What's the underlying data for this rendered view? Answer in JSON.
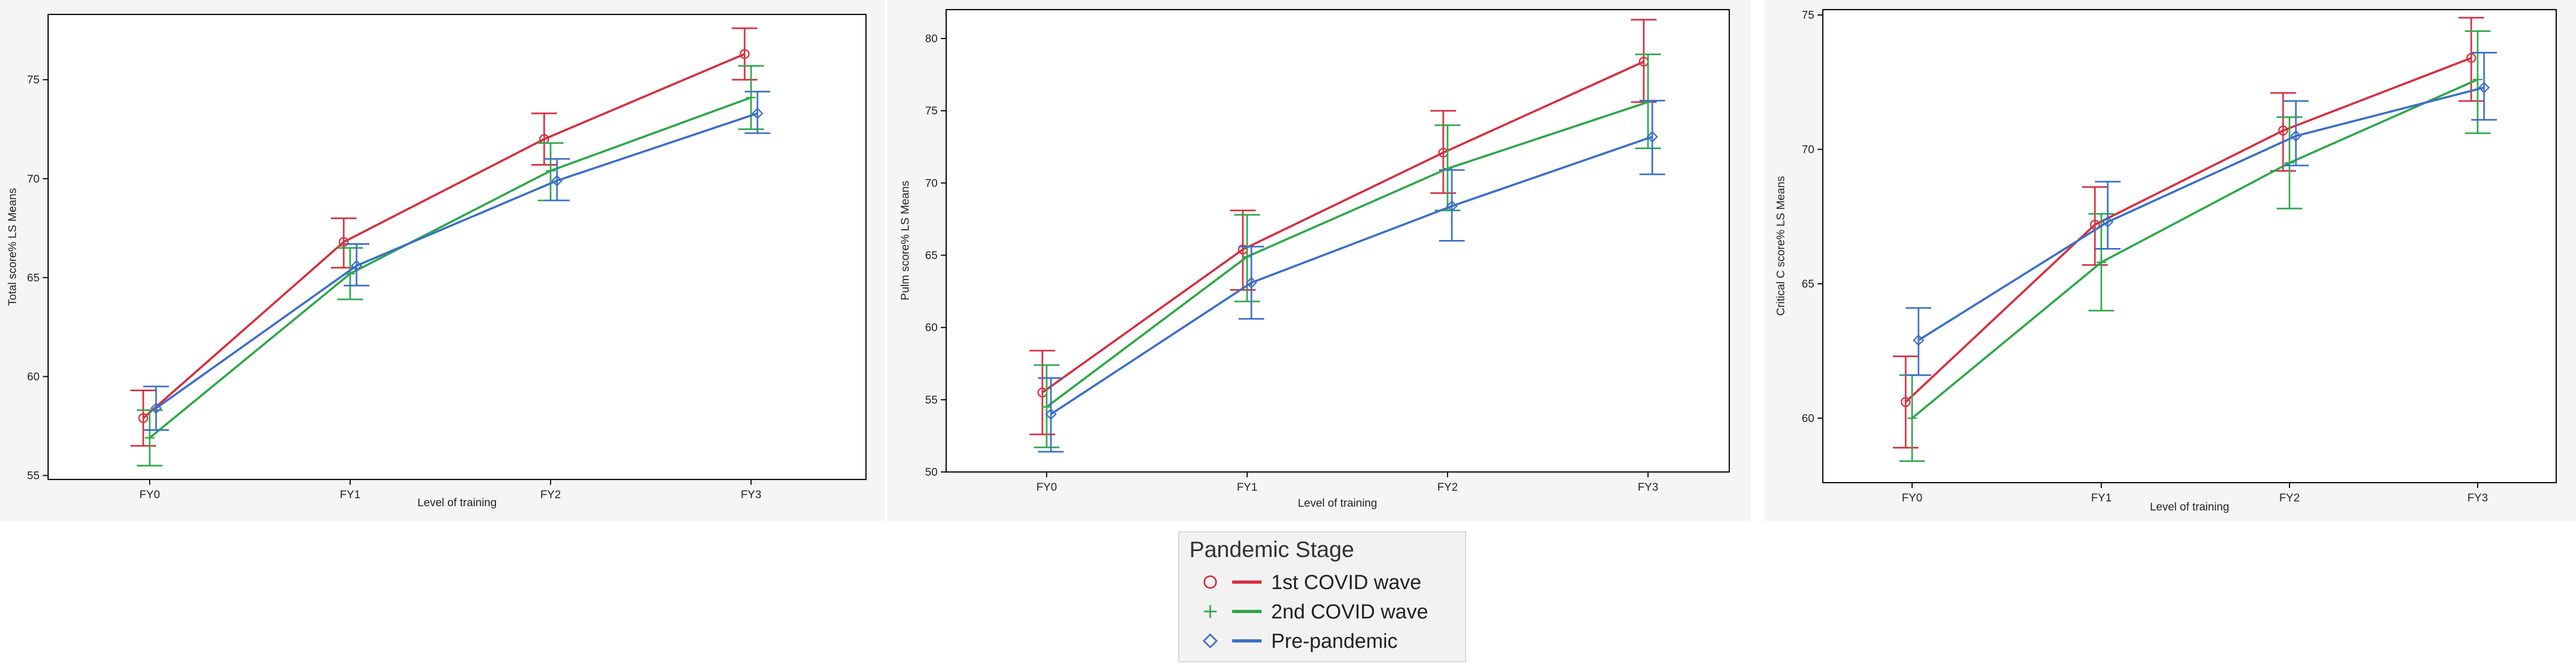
{
  "legend": {
    "title": "Pandemic Stage",
    "items": [
      {
        "label": "1st COVID wave",
        "color": "#d62f3f",
        "marker": "circle"
      },
      {
        "label": "2nd COVID wave",
        "color": "#2ea84a",
        "marker": "plus"
      },
      {
        "label": "Pre-pandemic",
        "color": "#3c6fc8",
        "marker": "diamond"
      }
    ]
  },
  "chart_data": [
    {
      "type": "line",
      "xlabel": "Level of training",
      "ylabel": "Total score% LS Means",
      "categories": [
        "FY0",
        "FY1",
        "FY2",
        "FY3"
      ],
      "ylim": [
        54.8,
        78.3
      ],
      "yticks": [
        55,
        60,
        65,
        70,
        75
      ],
      "series": [
        {
          "name": "1st COVID wave",
          "values": [
            57.9,
            66.8,
            72.0,
            76.3
          ],
          "lower": [
            56.5,
            65.5,
            70.7,
            75.0
          ],
          "upper": [
            59.3,
            68.0,
            73.3,
            77.6
          ]
        },
        {
          "name": "2nd COVID wave",
          "values": [
            56.9,
            65.2,
            70.4,
            74.1
          ],
          "lower": [
            55.5,
            63.9,
            68.9,
            72.5
          ],
          "upper": [
            58.3,
            66.5,
            71.8,
            75.7
          ]
        },
        {
          "name": "Pre-pandemic",
          "values": [
            58.4,
            65.6,
            69.9,
            73.3
          ],
          "lower": [
            57.3,
            64.6,
            68.9,
            72.3
          ],
          "upper": [
            59.5,
            66.7,
            71.0,
            74.4
          ]
        }
      ]
    },
    {
      "type": "line",
      "xlabel": "Level of training",
      "ylabel": "Pulm score% LS Means",
      "categories": [
        "FY0",
        "FY1",
        "FY2",
        "FY3"
      ],
      "ylim": [
        50,
        82
      ],
      "yticks": [
        50,
        55,
        60,
        65,
        70,
        75,
        80
      ],
      "series": [
        {
          "name": "1st COVID wave",
          "values": [
            55.5,
            65.4,
            72.1,
            78.4
          ],
          "lower": [
            52.6,
            62.6,
            69.3,
            75.6
          ],
          "upper": [
            58.4,
            68.1,
            75.0,
            81.3
          ]
        },
        {
          "name": "2nd COVID wave",
          "values": [
            54.5,
            64.9,
            71.0,
            75.6
          ],
          "lower": [
            51.7,
            61.8,
            68.1,
            72.4
          ],
          "upper": [
            57.4,
            67.8,
            74.0,
            78.9
          ]
        },
        {
          "name": "Pre-pandemic",
          "values": [
            54.0,
            63.1,
            68.4,
            73.2
          ],
          "lower": [
            51.4,
            60.6,
            66.0,
            70.6
          ],
          "upper": [
            56.5,
            65.6,
            70.9,
            75.7
          ]
        }
      ]
    },
    {
      "type": "line",
      "xlabel": "Level of training",
      "ylabel": "Critical C score% LS Means",
      "categories": [
        "FY0",
        "FY1",
        "FY2",
        "FY3"
      ],
      "ylim": [
        57.6,
        75.2
      ],
      "yticks": [
        60,
        65,
        70,
        75
      ],
      "series": [
        {
          "name": "1st COVID wave",
          "values": [
            60.6,
            67.2,
            70.7,
            73.4
          ],
          "lower": [
            58.9,
            65.7,
            69.2,
            71.8
          ],
          "upper": [
            62.3,
            68.6,
            72.1,
            74.9
          ]
        },
        {
          "name": "2nd COVID wave",
          "values": [
            60.0,
            65.8,
            69.5,
            72.6
          ],
          "lower": [
            58.4,
            64.0,
            67.8,
            70.6
          ],
          "upper": [
            61.6,
            67.6,
            71.2,
            74.4
          ]
        },
        {
          "name": "Pre-pandemic",
          "values": [
            62.9,
            67.3,
            70.5,
            72.3
          ],
          "lower": [
            61.6,
            66.3,
            69.4,
            71.1
          ],
          "upper": [
            64.1,
            68.8,
            71.8,
            73.6
          ]
        }
      ]
    }
  ]
}
